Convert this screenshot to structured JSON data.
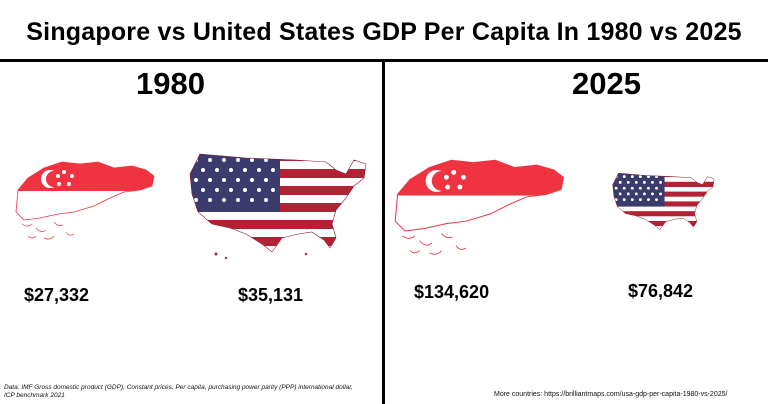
{
  "title": "Singapore vs United States GDP Per Capita In 1980 vs 2025",
  "panels": [
    {
      "year": "1980",
      "singapore_value": "$27,332",
      "usa_value": "$35,131"
    },
    {
      "year": "2025",
      "singapore_value": "$134,620",
      "usa_value": "$76,842"
    }
  ],
  "footer": {
    "source": "Data: IMF Gross domestic product (GDP), Constant prices, Per capita, purchasing power parity (PPP) international dollar, ICP benchmark 2021",
    "more": "More countries: https://brilliantmaps.com/usa-gdp-per-capita-1980-vs-2025/"
  },
  "colors": {
    "singapore_red": "#EF3340",
    "us_red": "#B22234",
    "us_blue": "#3C3B6E",
    "white": "#FFFFFF"
  },
  "icons": [
    "singapore-flag-map",
    "usa-flag-map"
  ]
}
